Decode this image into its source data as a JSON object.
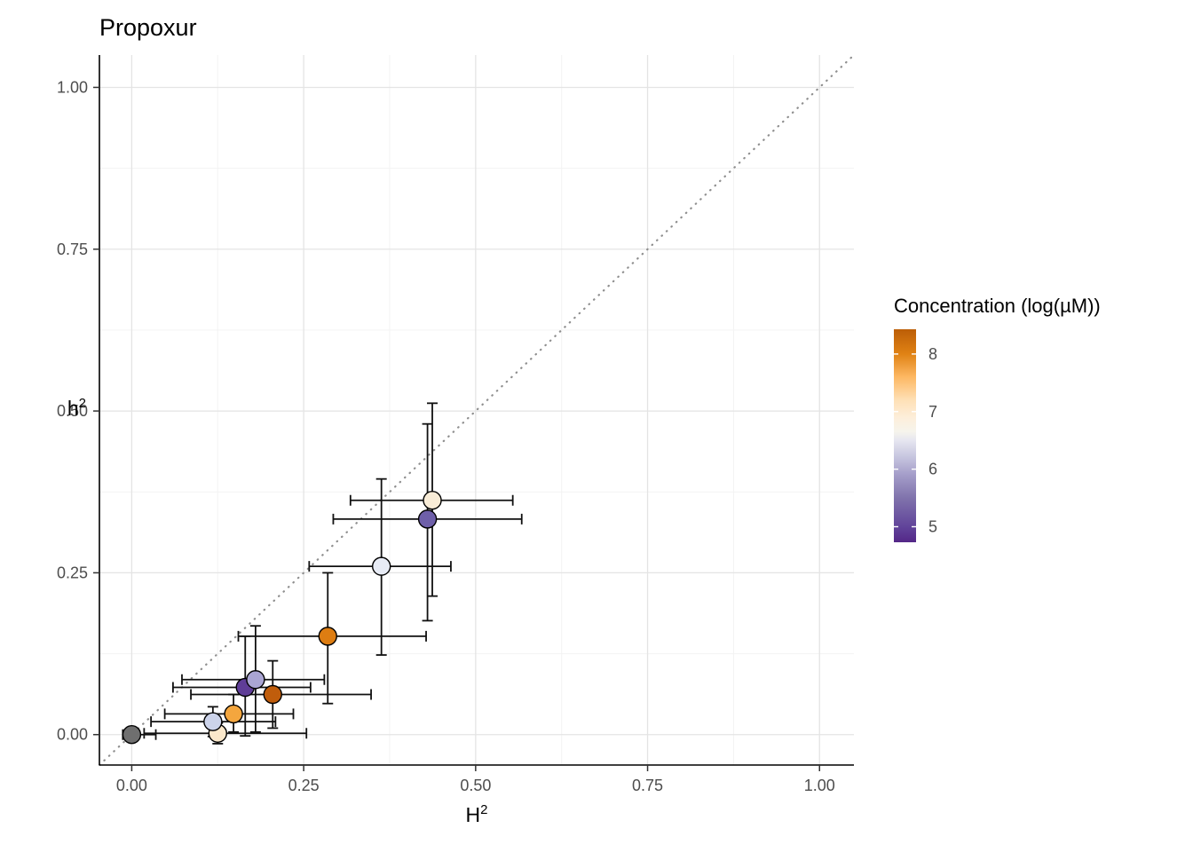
{
  "page": {
    "title": "Propoxur"
  },
  "chart_data": {
    "type": "scatter",
    "title": "Propoxur",
    "xlabel": {
      "base": "H",
      "sup": "2",
      "text": "H²"
    },
    "ylabel": {
      "base": "h",
      "sup": "2",
      "text": "h²"
    },
    "xlim": [
      -0.047,
      1.05
    ],
    "ylim": [
      -0.047,
      1.05
    ],
    "xticks": [
      0,
      0.25,
      0.5,
      0.75,
      1
    ],
    "xtick_labels": [
      "0.00",
      "0.25",
      "0.50",
      "0.75",
      "1.00"
    ],
    "yticks": [
      0,
      0.25,
      0.5,
      0.75,
      1
    ],
    "ytick_labels": [
      "0.00",
      "0.25",
      "0.50",
      "0.75",
      "1.00"
    ],
    "minor_ticks": [
      0.125,
      0.375,
      0.625,
      0.875
    ],
    "grid": true,
    "identity_line": {
      "slope": 1,
      "intercept": 0,
      "style": "dotted",
      "color": "#8f8f8f"
    },
    "points": [
      {
        "x": 0.0,
        "y": 0.0,
        "xmin": -0.013,
        "xmax": 0.035,
        "ymin": -0.01,
        "ymax": 0.01,
        "conc": null,
        "color": "#6f6f6f"
      },
      {
        "x": 0.125,
        "y": 0.002,
        "xmin": 0.018,
        "xmax": 0.254,
        "ymin": -0.014,
        "ymax": 0.018,
        "conc": 6.9,
        "color": "#fbe8cb"
      },
      {
        "x": 0.118,
        "y": 0.02,
        "xmin": 0.028,
        "xmax": 0.209,
        "ymin": -0.003,
        "ymax": 0.043,
        "conc": 6.1,
        "color": "#ccd3ea"
      },
      {
        "x": 0.148,
        "y": 0.032,
        "xmin": 0.048,
        "xmax": 0.235,
        "ymin": 0.004,
        "ymax": 0.062,
        "conc": 7.6,
        "color": "#f4a63e"
      },
      {
        "x": 0.165,
        "y": 0.073,
        "xmin": 0.06,
        "xmax": 0.26,
        "ymin": -0.002,
        "ymax": 0.152,
        "conc": 5.1,
        "color": "#5f3d97"
      },
      {
        "x": 0.205,
        "y": 0.062,
        "xmin": 0.086,
        "xmax": 0.348,
        "ymin": 0.01,
        "ymax": 0.114,
        "conc": 8.2,
        "color": "#c05d0c"
      },
      {
        "x": 0.18,
        "y": 0.085,
        "xmin": 0.073,
        "xmax": 0.28,
        "ymin": 0.004,
        "ymax": 0.168,
        "conc": 5.9,
        "color": "#aaa5d3"
      },
      {
        "x": 0.285,
        "y": 0.152,
        "xmin": 0.155,
        "xmax": 0.428,
        "ymin": 0.048,
        "ymax": 0.25,
        "conc": 7.9,
        "color": "#dd7d12"
      },
      {
        "x": 0.363,
        "y": 0.26,
        "xmin": 0.258,
        "xmax": 0.464,
        "ymin": 0.123,
        "ymax": 0.395,
        "conc": 6.3,
        "color": "#e7ebf5"
      },
      {
        "x": 0.43,
        "y": 0.333,
        "xmin": 0.293,
        "xmax": 0.567,
        "ymin": 0.176,
        "ymax": 0.48,
        "conc": 5.3,
        "color": "#6e5fa9"
      },
      {
        "x": 0.437,
        "y": 0.362,
        "xmin": 0.318,
        "xmax": 0.554,
        "ymin": 0.214,
        "ymax": 0.512,
        "conc": 6.8,
        "color": "#f8ecd7"
      }
    ],
    "legend": {
      "title": "Concentration (log(µM))",
      "position": "right",
      "range": [
        4.73,
        8.43
      ],
      "ticks": [
        5,
        6,
        7,
        8
      ],
      "tick_labels": [
        "5",
        "6",
        "7",
        "8"
      ],
      "gradient": [
        {
          "value": 4.73,
          "color": "#542788"
        },
        {
          "value": 5.0,
          "color": "#61449a"
        },
        {
          "value": 5.5,
          "color": "#8073ac"
        },
        {
          "value": 5.9,
          "color": "#a49dc9"
        },
        {
          "value": 6.2,
          "color": "#c5c4de"
        },
        {
          "value": 6.5,
          "color": "#e6e6f0"
        },
        {
          "value": 6.65,
          "color": "#f6f4ec"
        },
        {
          "value": 6.9,
          "color": "#fdeeda"
        },
        {
          "value": 7.2,
          "color": "#fee0b6"
        },
        {
          "value": 7.6,
          "color": "#fdb863"
        },
        {
          "value": 8.0,
          "color": "#e08214"
        },
        {
          "value": 8.43,
          "color": "#bc5e07"
        }
      ]
    }
  }
}
